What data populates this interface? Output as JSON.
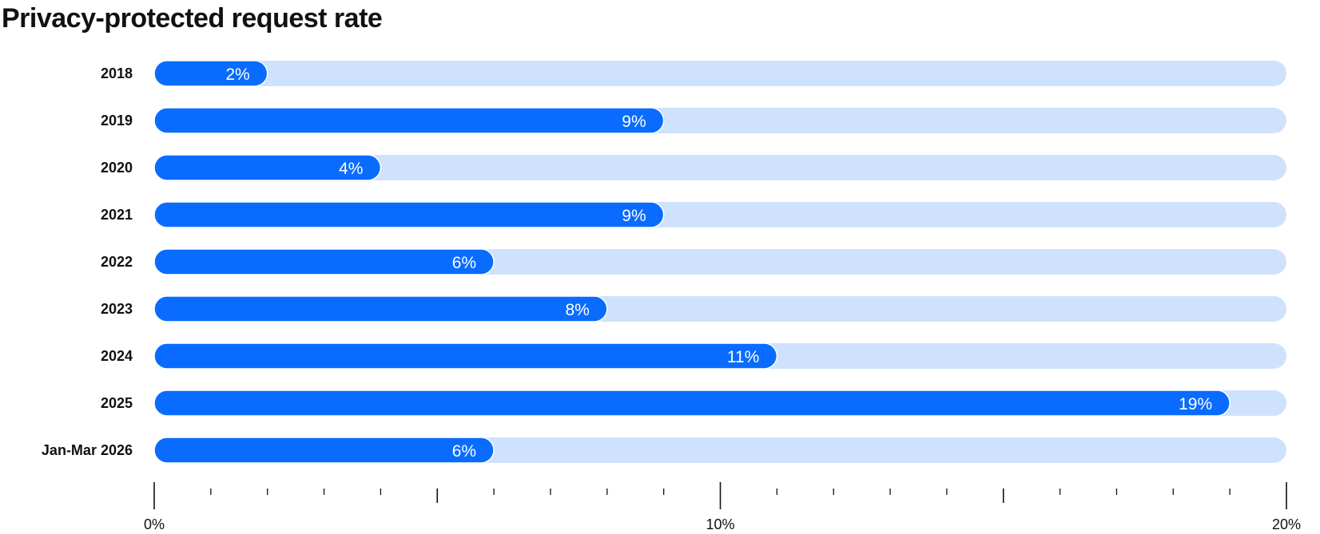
{
  "chart_data": {
    "type": "bar",
    "orientation": "horizontal",
    "title": "Privacy-protected request rate",
    "categories": [
      "2018",
      "2019",
      "2020",
      "2021",
      "2022",
      "2023",
      "2024",
      "2025",
      "Jan-Mar 2026"
    ],
    "values": [
      2,
      9,
      4,
      9,
      6,
      8,
      11,
      19,
      6
    ],
    "value_labels": [
      "2%",
      "9%",
      "4%",
      "9%",
      "6%",
      "8%",
      "11%",
      "19%",
      "6%"
    ],
    "xlim": [
      0,
      20
    ],
    "x_ticks": [
      {
        "value": 0,
        "label": "0%"
      },
      {
        "value": 10,
        "label": "10%"
      },
      {
        "value": 20,
        "label": "20%"
      }
    ],
    "minor_tick_step": 1,
    "major_tick_step": 5,
    "grid": false,
    "legend": "none",
    "colors": {
      "bar": "#0A6CFF",
      "track": "#CFE2FD",
      "bar_label": "#FFFFFF",
      "text": "#111111",
      "axis": "#111111"
    }
  }
}
